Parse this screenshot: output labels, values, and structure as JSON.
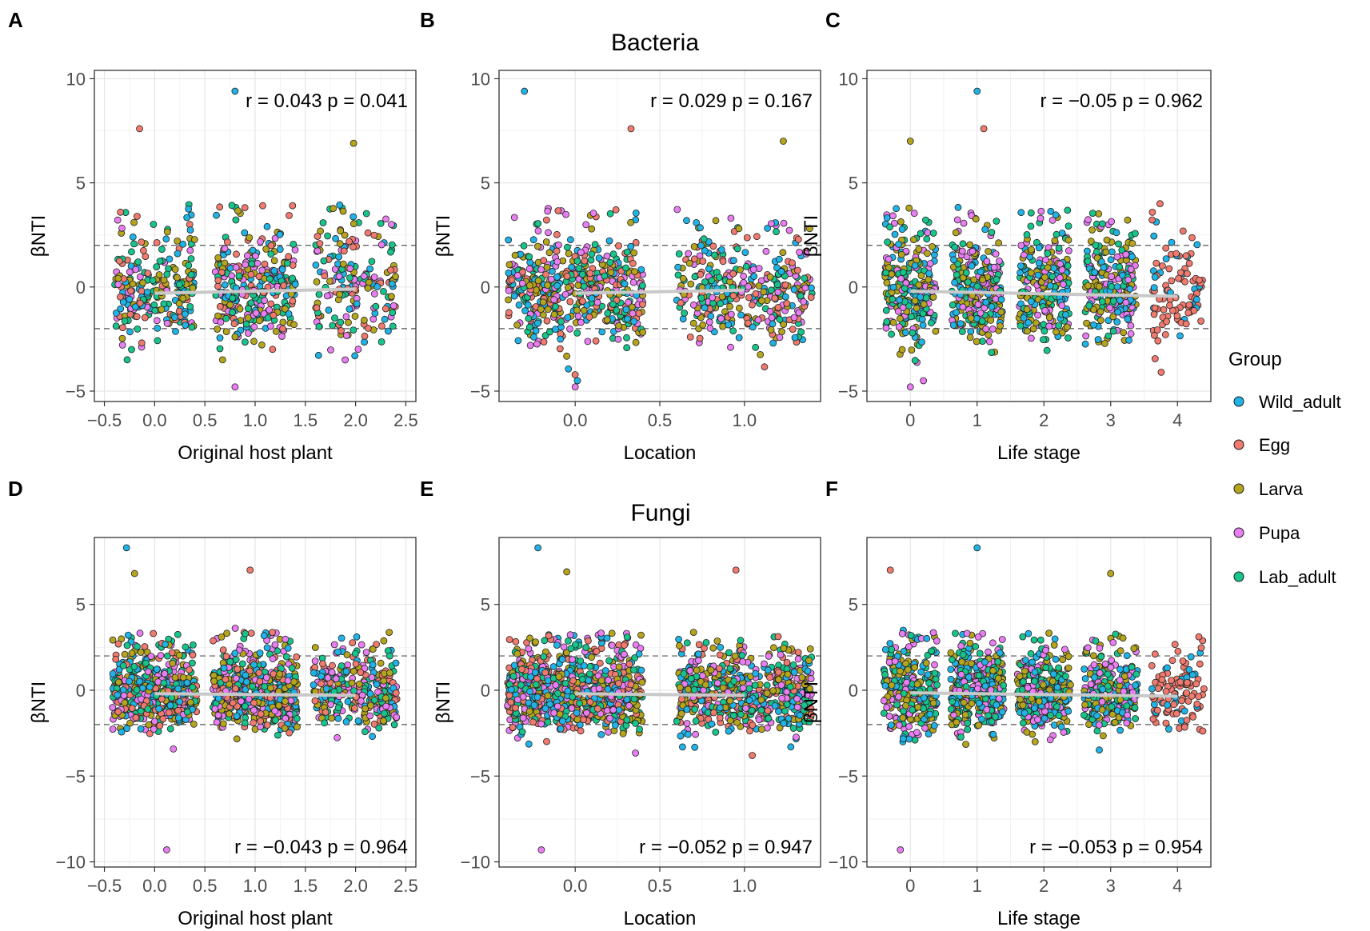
{
  "groups": [
    "Wild_adult",
    "Egg",
    "Larva",
    "Pupa",
    "Lab_adult"
  ],
  "group_colors": {
    "Wild_adult": "#1fb3e6",
    "Egg": "#f07a6e",
    "Larva": "#b5a51c",
    "Pupa": "#e97ef2",
    "Lab_adult": "#16c48c"
  },
  "legend": {
    "title": "Group",
    "entries": [
      "Wild_adult",
      "Egg",
      "Larva",
      "Pupa",
      "Lab_adult"
    ]
  },
  "row_titles": {
    "bacteria": "Bacteria",
    "fungi": "Fungi"
  },
  "reference_lines": [
    2,
    -2
  ],
  "chart_data": [
    {
      "panel": "A",
      "type": "scatter",
      "title": "",
      "xlabel": "Original host plant",
      "ylabel": "βNTI",
      "xlim": [
        -0.6,
        2.6
      ],
      "ylim": [
        -5.5,
        10.4
      ],
      "xticks": [
        -0.5,
        0.0,
        0.5,
        1.0,
        1.5,
        2.0,
        2.5
      ],
      "xtick_labels": [
        "−0.5",
        "0.0",
        "0.5",
        "1.0",
        "1.5",
        "2.0",
        "2.5"
      ],
      "yticks": [
        -5,
        0,
        5,
        10
      ],
      "ytick_labels": [
        "−5",
        "0",
        "5",
        "10"
      ],
      "clusters": [
        {
          "center": 0,
          "count": 230
        },
        {
          "center": 1,
          "count": 300
        },
        {
          "center": 2,
          "count": 190
        }
      ],
      "cluster_groups": [
        [
          "Wild_adult",
          "Egg",
          "Larva",
          "Pupa",
          "Lab_adult"
        ],
        [
          "Wild_adult",
          "Egg",
          "Larva",
          "Pupa",
          "Lab_adult"
        ],
        [
          "Wild_adult",
          "Egg",
          "Larva",
          "Pupa",
          "Lab_adult"
        ]
      ],
      "spread": 0.4,
      "y_center": -0.2,
      "y_sd": 1.2,
      "y_min": -4.5,
      "y_max": 6.5,
      "outliers": [
        {
          "x": 0.8,
          "y": 9.4
        },
        {
          "x": -0.15,
          "y": 7.6
        },
        {
          "x": 1.98,
          "y": 6.9
        },
        {
          "x": 0.8,
          "y": -4.8
        }
      ],
      "trend": {
        "x": [
          0,
          2
        ],
        "y": [
          -0.3,
          -0.1
        ]
      },
      "stat": "r = 0.043 p = 0.041",
      "stat_position": "top-right"
    },
    {
      "panel": "B",
      "type": "scatter",
      "title": "Bacteria",
      "xlabel": "Location",
      "ylabel": "βNTI",
      "xlim": [
        -0.45,
        1.45
      ],
      "ylim": [
        -5.5,
        10.4
      ],
      "xticks": [
        0.0,
        0.5,
        1.0
      ],
      "xtick_labels": [
        "0.0",
        "0.5",
        "1.0"
      ],
      "yticks": [
        -5,
        0,
        5,
        10
      ],
      "ytick_labels": [
        "−5",
        "0",
        "5",
        "10"
      ],
      "clusters": [
        {
          "center": 0,
          "count": 480
        },
        {
          "center": 1,
          "count": 360
        }
      ],
      "cluster_groups": [
        [
          "Wild_adult",
          "Egg",
          "Larva",
          "Pupa",
          "Lab_adult"
        ],
        [
          "Wild_adult",
          "Egg",
          "Larva",
          "Pupa",
          "Lab_adult"
        ]
      ],
      "spread": 0.4,
      "y_center": -0.2,
      "y_sd": 1.2,
      "y_min": -4.5,
      "y_max": 6,
      "outliers": [
        {
          "x": -0.3,
          "y": 9.4
        },
        {
          "x": 0.33,
          "y": 7.6
        },
        {
          "x": 1.23,
          "y": 7.0
        },
        {
          "x": 0.0,
          "y": -4.8
        }
      ],
      "trend": {
        "x": [
          0,
          1
        ],
        "y": [
          -0.3,
          -0.15
        ]
      },
      "stat": "r = 0.029 p = 0.167",
      "stat_position": "top-right"
    },
    {
      "panel": "C",
      "type": "scatter",
      "title": "",
      "xlabel": "Life stage",
      "ylabel": "βNTI",
      "xlim": [
        -0.65,
        4.5
      ],
      "ylim": [
        -5.5,
        10.4
      ],
      "xticks": [
        0,
        1,
        2,
        3,
        4
      ],
      "xtick_labels": [
        "0",
        "1",
        "2",
        "3",
        "4"
      ],
      "yticks": [
        -5,
        0,
        5,
        10
      ],
      "ytick_labels": [
        "−5",
        "0",
        "5",
        "10"
      ],
      "clusters": [
        {
          "center": 0,
          "count": 260
        },
        {
          "center": 1,
          "count": 280
        },
        {
          "center": 2,
          "count": 240
        },
        {
          "center": 3,
          "count": 220
        },
        {
          "center": 4,
          "count": 100
        }
      ],
      "cluster_groups": [
        [
          "Wild_adult",
          "Larva",
          "Pupa",
          "Lab_adult"
        ],
        [
          "Wild_adult",
          "Larva",
          "Pupa",
          "Lab_adult"
        ],
        [
          "Wild_adult",
          "Larva",
          "Pupa",
          "Lab_adult"
        ],
        [
          "Wild_adult",
          "Larva",
          "Pupa",
          "Lab_adult"
        ],
        [
          "Egg",
          "Egg",
          "Egg",
          "Wild_adult"
        ]
      ],
      "spread": 0.38,
      "y_center": -0.2,
      "y_sd": 1.2,
      "y_min": -4.5,
      "y_max": 6,
      "outliers": [
        {
          "x": 1.0,
          "y": 9.4
        },
        {
          "x": 1.1,
          "y": 7.6
        },
        {
          "x": 0.0,
          "y": 7.0
        },
        {
          "x": 0.0,
          "y": -4.8
        }
      ],
      "trend": {
        "x": [
          0,
          4
        ],
        "y": [
          -0.2,
          -0.45
        ]
      },
      "stat": "r = −0.05 p = 0.962",
      "stat_position": "top-right"
    },
    {
      "panel": "D",
      "type": "scatter",
      "title": "",
      "xlabel": "Original host plant",
      "ylabel": "βNTI",
      "xlim": [
        -0.6,
        2.6
      ],
      "ylim": [
        -10.3,
        8.9
      ],
      "xticks": [
        -0.5,
        0.0,
        0.5,
        1.0,
        1.5,
        2.0,
        2.5
      ],
      "xtick_labels": [
        "−0.5",
        "0.0",
        "0.5",
        "1.0",
        "1.5",
        "2.0",
        "2.5"
      ],
      "yticks": [
        -10,
        -5,
        0,
        5
      ],
      "ytick_labels": [
        "−10",
        "−5",
        "0",
        "5"
      ],
      "clusters": [
        {
          "center": 0,
          "count": 480
        },
        {
          "center": 1,
          "count": 520
        },
        {
          "center": 2,
          "count": 300
        }
      ],
      "cluster_groups": [
        [
          "Wild_adult",
          "Egg",
          "Larva",
          "Pupa",
          "Lab_adult"
        ],
        [
          "Wild_adult",
          "Egg",
          "Larva",
          "Pupa",
          "Lab_adult"
        ],
        [
          "Wild_adult",
          "Egg",
          "Larva",
          "Pupa",
          "Lab_adult"
        ]
      ],
      "spread": 0.42,
      "y_center": -0.2,
      "y_sd": 1.1,
      "y_min": -3.8,
      "y_max": 5.5,
      "outliers": [
        {
          "x": -0.28,
          "y": 8.3
        },
        {
          "x": 0.95,
          "y": 7.0
        },
        {
          "x": -0.2,
          "y": 6.8
        },
        {
          "x": 0.12,
          "y": -9.3
        }
      ],
      "trend": {
        "x": [
          0,
          2
        ],
        "y": [
          -0.2,
          -0.3
        ]
      },
      "stat": "r = −0.043 p = 0.964",
      "stat_position": "bottom-right"
    },
    {
      "panel": "E",
      "type": "scatter",
      "title": "Fungi",
      "xlabel": "Location",
      "ylabel": "βNTI",
      "xlim": [
        -0.45,
        1.45
      ],
      "ylim": [
        -10.3,
        8.9
      ],
      "xticks": [
        0.0,
        0.5,
        1.0
      ],
      "xtick_labels": [
        "0.0",
        "0.5",
        "1.0"
      ],
      "yticks": [
        -10,
        -5,
        0,
        5
      ],
      "ytick_labels": [
        "−10",
        "−5",
        "0",
        "5"
      ],
      "clusters": [
        {
          "center": 0,
          "count": 800
        },
        {
          "center": 1,
          "count": 560
        }
      ],
      "cluster_groups": [
        [
          "Wild_adult",
          "Egg",
          "Larva",
          "Pupa",
          "Lab_adult"
        ],
        [
          "Wild_adult",
          "Egg",
          "Larva",
          "Pupa",
          "Lab_adult"
        ]
      ],
      "spread": 0.4,
      "y_center": -0.2,
      "y_sd": 1.1,
      "y_min": -3.8,
      "y_max": 5.5,
      "outliers": [
        {
          "x": -0.22,
          "y": 8.3
        },
        {
          "x": 0.95,
          "y": 7.0
        },
        {
          "x": -0.05,
          "y": 6.9
        },
        {
          "x": -0.2,
          "y": -9.3
        }
      ],
      "trend": {
        "x": [
          0,
          1
        ],
        "y": [
          -0.2,
          -0.3
        ]
      },
      "stat": "r = −0.052 p = 0.947",
      "stat_position": "bottom-right"
    },
    {
      "panel": "F",
      "type": "scatter",
      "title": "",
      "xlabel": "Life stage",
      "ylabel": "βNTI",
      "xlim": [
        -0.65,
        4.5
      ],
      "ylim": [
        -10.3,
        8.9
      ],
      "xticks": [
        0,
        1,
        2,
        3,
        4
      ],
      "xtick_labels": [
        "0",
        "1",
        "2",
        "3",
        "4"
      ],
      "yticks": [
        -10,
        -5,
        0,
        5
      ],
      "ytick_labels": [
        "−10",
        "−5",
        "0",
        "5"
      ],
      "clusters": [
        {
          "center": 0,
          "count": 300
        },
        {
          "center": 1,
          "count": 340
        },
        {
          "center": 2,
          "count": 300
        },
        {
          "center": 3,
          "count": 240
        },
        {
          "center": 4,
          "count": 110
        }
      ],
      "cluster_groups": [
        [
          "Wild_adult",
          "Larva",
          "Pupa",
          "Lab_adult"
        ],
        [
          "Wild_adult",
          "Larva",
          "Pupa",
          "Lab_adult"
        ],
        [
          "Wild_adult",
          "Larva",
          "Pupa",
          "Lab_adult"
        ],
        [
          "Wild_adult",
          "Larva",
          "Pupa",
          "Lab_adult"
        ],
        [
          "Egg",
          "Egg",
          "Egg",
          "Wild_adult"
        ]
      ],
      "spread": 0.4,
      "y_center": -0.2,
      "y_sd": 1.1,
      "y_min": -3.8,
      "y_max": 5.5,
      "outliers": [
        {
          "x": 1.0,
          "y": 8.3
        },
        {
          "x": -0.3,
          "y": 7.0
        },
        {
          "x": 3.0,
          "y": 6.8
        },
        {
          "x": -0.15,
          "y": -9.3
        }
      ],
      "trend": {
        "x": [
          0,
          4
        ],
        "y": [
          -0.15,
          -0.35
        ]
      },
      "stat": "r = −0.053 p = 0.954",
      "stat_position": "bottom-right"
    }
  ]
}
